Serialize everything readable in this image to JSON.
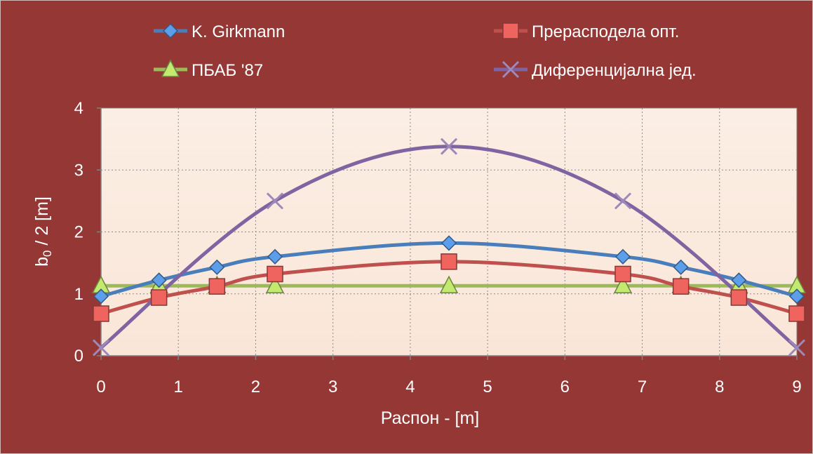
{
  "chart_data": {
    "type": "line",
    "title": "",
    "xlabel": "Распон - [m]",
    "ylabel_main": "b",
    "ylabel_sub": "0",
    "ylabel_rest": " / 2 [m]",
    "xlim": [
      0,
      9
    ],
    "ylim": [
      0,
      4
    ],
    "x_ticks": [
      0,
      1,
      2,
      3,
      4,
      5,
      6,
      7,
      8,
      9
    ],
    "y_ticks": [
      0,
      1,
      2,
      3,
      4
    ],
    "grid": true,
    "legend_position": "top",
    "series": [
      {
        "name": "K. Girkmann",
        "color": "#4a7ebb",
        "marker": "diamond",
        "x": [
          0,
          0.75,
          1.5,
          2.25,
          4.5,
          6.75,
          7.5,
          8.25,
          9
        ],
        "y": [
          0.96,
          1.22,
          1.43,
          1.6,
          1.82,
          1.6,
          1.43,
          1.22,
          0.96
        ]
      },
      {
        "name": "Прерасподела опт.",
        "color": "#c0504d",
        "marker": "square",
        "x": [
          0,
          0.75,
          1.5,
          2.25,
          4.5,
          6.75,
          7.5,
          8.25,
          9
        ],
        "y": [
          0.68,
          0.94,
          1.12,
          1.32,
          1.52,
          1.32,
          1.12,
          0.94,
          0.68
        ]
      },
      {
        "name": "ПБАБ '87",
        "color": "#9bbb59",
        "marker": "triangle",
        "x": [
          0,
          0.75,
          1.5,
          2.25,
          4.5,
          6.75,
          7.5,
          8.25,
          9
        ],
        "y": [
          1.13,
          1.13,
          1.13,
          1.13,
          1.13,
          1.13,
          1.13,
          1.13,
          1.13
        ]
      },
      {
        "name": "Диференцијална јед.",
        "color": "#8064a2",
        "marker": "x",
        "x": [
          0,
          2.25,
          4.5,
          6.75,
          9
        ],
        "y": [
          0.13,
          2.5,
          3.38,
          2.5,
          0.13
        ]
      }
    ]
  }
}
